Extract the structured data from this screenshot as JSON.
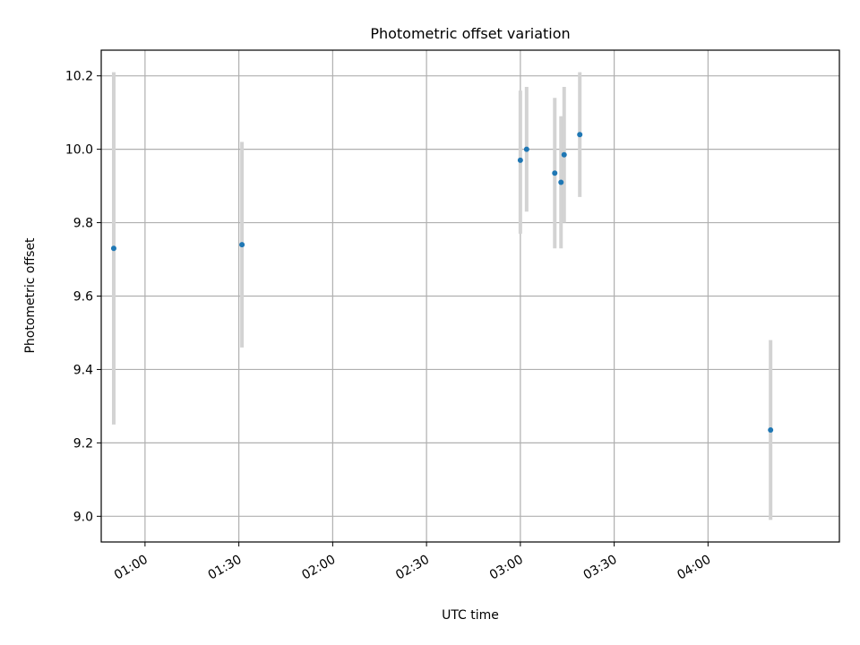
{
  "chart_data": {
    "type": "scatter",
    "title": "Photometric offset variation",
    "xlabel": "UTC time",
    "ylabel": "Photometric offset",
    "x_axis_type": "time",
    "xlim": [
      "00:46",
      "04:42"
    ],
    "ylim": [
      8.93,
      10.27
    ],
    "x_ticks": [
      "01:00",
      "01:30",
      "02:00",
      "02:30",
      "03:00",
      "03:30",
      "04:00"
    ],
    "y_ticks": [
      9.0,
      9.2,
      9.4,
      9.6,
      9.8,
      10.0,
      10.2
    ],
    "y_tick_labels": [
      "9.0",
      "9.2",
      "9.4",
      "9.6",
      "9.8",
      "10.0",
      "10.2"
    ],
    "grid": true,
    "legend": false,
    "point_color": "#1f77b4",
    "errorbar_color": "#d3d3d3",
    "points": [
      {
        "x": "00:50",
        "y": 9.73,
        "ylow": 9.25,
        "yhigh": 10.21
      },
      {
        "x": "01:31",
        "y": 9.74,
        "ylow": 9.46,
        "yhigh": 10.02
      },
      {
        "x": "03:00",
        "y": 9.97,
        "ylow": 9.77,
        "yhigh": 10.16
      },
      {
        "x": "03:02",
        "y": 10.0,
        "ylow": 9.83,
        "yhigh": 10.17
      },
      {
        "x": "03:11",
        "y": 9.935,
        "ylow": 9.73,
        "yhigh": 10.14
      },
      {
        "x": "03:13",
        "y": 9.91,
        "ylow": 9.73,
        "yhigh": 10.09
      },
      {
        "x": "03:14",
        "y": 9.985,
        "ylow": 9.8,
        "yhigh": 10.17
      },
      {
        "x": "03:19",
        "y": 10.04,
        "ylow": 9.87,
        "yhigh": 10.21
      },
      {
        "x": "04:20",
        "y": 9.235,
        "ylow": 8.99,
        "yhigh": 9.48
      }
    ]
  }
}
